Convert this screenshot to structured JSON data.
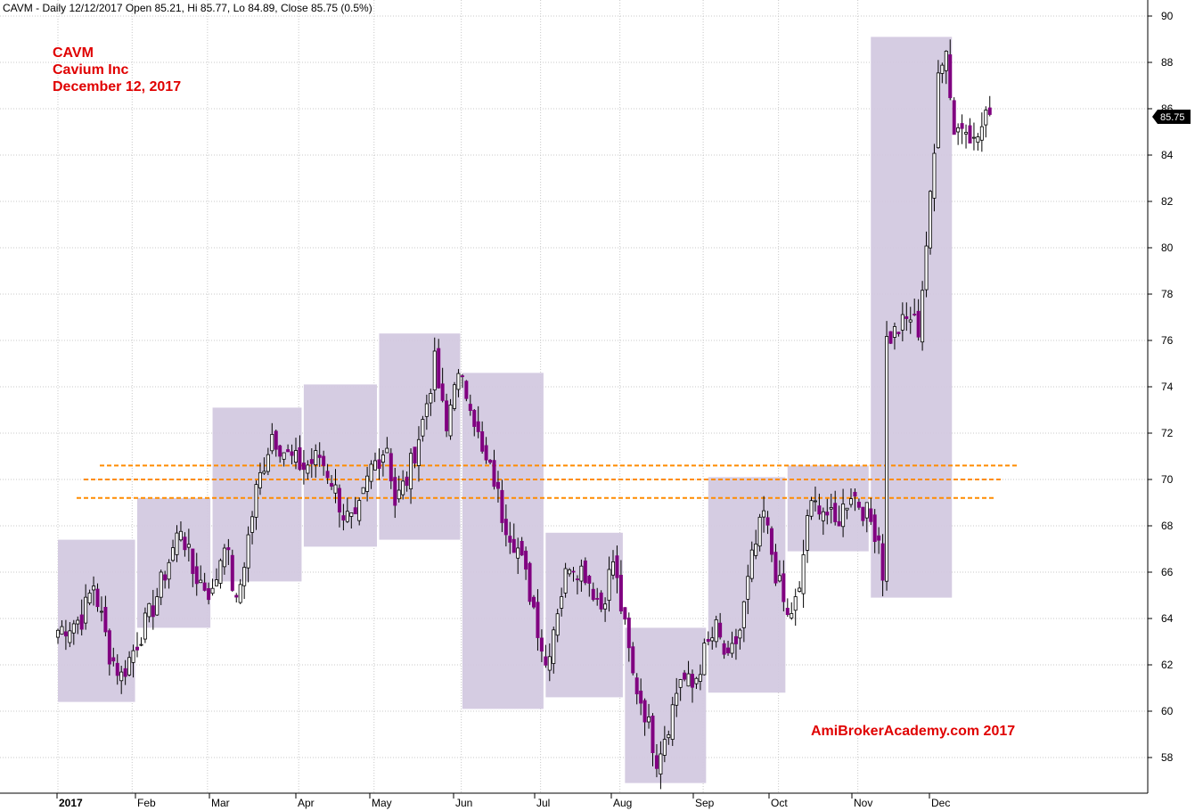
{
  "header_text": "CAVM - Daily 12/12/2017 Open 85.21, Hi 85.77, Lo 84.89, Close 85.75 (0.5%)",
  "annotation": {
    "ticker": "CAVM",
    "name": "Cavium Inc",
    "date": "December 12, 2017"
  },
  "watermark": "AmiBrokerAcademy.com  2017",
  "colors": {
    "bull": "#ffffff",
    "bear": "#800080",
    "box": "#d3c9e0",
    "level": "#ff8c00",
    "grid": "#c8c8c8"
  },
  "chart_data": {
    "type": "candlestick",
    "y_axis": {
      "ylim": [
        56.2,
        90.8
      ],
      "ticks": [
        58,
        60,
        62,
        64,
        66,
        68,
        70,
        72,
        74,
        76,
        78,
        80,
        82,
        84,
        86,
        88,
        90
      ]
    },
    "x_axis": {
      "labels": [
        "2017",
        "Feb",
        "Mar",
        "Apr",
        "May",
        "Jun",
        "Jul",
        "Aug",
        "Sep",
        "Oct",
        "Nov",
        "Dec"
      ]
    },
    "last_price_label": "85.75",
    "anchors": [
      [
        0,
        63.5
      ],
      [
        6,
        64.0
      ],
      [
        9,
        65.5
      ],
      [
        13,
        62.5
      ],
      [
        16,
        61.5
      ],
      [
        20,
        63.0
      ],
      [
        24,
        64.5
      ],
      [
        28,
        66.5
      ],
      [
        31,
        68.0
      ],
      [
        34,
        66.0
      ],
      [
        39,
        65.0
      ],
      [
        42,
        67.5
      ],
      [
        45,
        64.5
      ],
      [
        50,
        69.5
      ],
      [
        54,
        72.0
      ],
      [
        58,
        71.0
      ],
      [
        62,
        70.5
      ],
      [
        66,
        71.0
      ],
      [
        69,
        70.0
      ],
      [
        72,
        68.5
      ],
      [
        75,
        68.0
      ],
      [
        79,
        70.5
      ],
      [
        83,
        71.5
      ],
      [
        85,
        69.0
      ],
      [
        88,
        70.0
      ],
      [
        92,
        72.5
      ],
      [
        95,
        75.0
      ],
      [
        98,
        72.0
      ],
      [
        100,
        74.5
      ],
      [
        104,
        73.5
      ],
      [
        107,
        71.0
      ],
      [
        110,
        70.0
      ],
      [
        112,
        68.5
      ],
      [
        116,
        67.0
      ],
      [
        120,
        64.5
      ],
      [
        123,
        62.0
      ],
      [
        126,
        64.5
      ],
      [
        129,
        66.5
      ],
      [
        133,
        66.0
      ],
      [
        137,
        64.5
      ],
      [
        140,
        66.5
      ],
      [
        143,
        63.5
      ],
      [
        145,
        61.5
      ],
      [
        148,
        60.0
      ],
      [
        151,
        58.0
      ],
      [
        154,
        59.5
      ],
      [
        157,
        61.5
      ],
      [
        160,
        61.0
      ],
      [
        163,
        62.5
      ],
      [
        166,
        63.5
      ],
      [
        169,
        62.0
      ],
      [
        172,
        63.5
      ],
      [
        175,
        66.5
      ],
      [
        178,
        68.5
      ],
      [
        181,
        66.0
      ],
      [
        184,
        64.0
      ],
      [
        187,
        65.0
      ],
      [
        189,
        68.5
      ],
      [
        192,
        69.0
      ],
      [
        196,
        68.0
      ],
      [
        200,
        69.5
      ],
      [
        204,
        68.5
      ],
      [
        207,
        67.5
      ],
      [
        208,
        66.0
      ],
      [
        209,
        76.0
      ],
      [
        212,
        76.5
      ],
      [
        215,
        77.0
      ],
      [
        217,
        76.5
      ],
      [
        220,
        82.0
      ],
      [
        221,
        84.0
      ],
      [
        222,
        88.0
      ],
      [
        224,
        88.5
      ],
      [
        226,
        85.0
      ],
      [
        229,
        85.5
      ],
      [
        231,
        84.5
      ],
      [
        234,
        85.5
      ],
      [
        235,
        85.75
      ]
    ],
    "shade_boxes": [
      {
        "start": "2017-01-01",
        "end": "2017-01-31",
        "high": 67.4,
        "low": 60.4
      },
      {
        "start": "2017-02-01",
        "end": "2017-02-28",
        "high": 69.2,
        "low": 63.6
      },
      {
        "start": "2017-03-01",
        "end": "2017-03-31",
        "high": 73.1,
        "low": 65.6
      },
      {
        "start": "2017-04-01",
        "end": "2017-04-30",
        "high": 74.1,
        "low": 67.1
      },
      {
        "start": "2017-05-01",
        "end": "2017-05-31",
        "high": 76.3,
        "low": 67.4
      },
      {
        "start": "2017-06-01",
        "end": "2017-06-30",
        "high": 74.6,
        "low": 60.1
      },
      {
        "start": "2017-07-01",
        "end": "2017-07-31",
        "high": 67.7,
        "low": 60.6
      },
      {
        "start": "2017-08-01",
        "end": "2017-08-31",
        "high": 63.6,
        "low": 56.9
      },
      {
        "start": "2017-09-01",
        "end": "2017-09-30",
        "high": 70.1,
        "low": 60.8
      },
      {
        "start": "2017-10-01",
        "end": "2017-10-31",
        "high": 70.6,
        "low": 66.9
      },
      {
        "start": "2017-11-01",
        "end": "2017-11-30",
        "high": 89.1,
        "low": 64.9
      }
    ],
    "levels": [
      70.6,
      70.0,
      69.2
    ]
  }
}
